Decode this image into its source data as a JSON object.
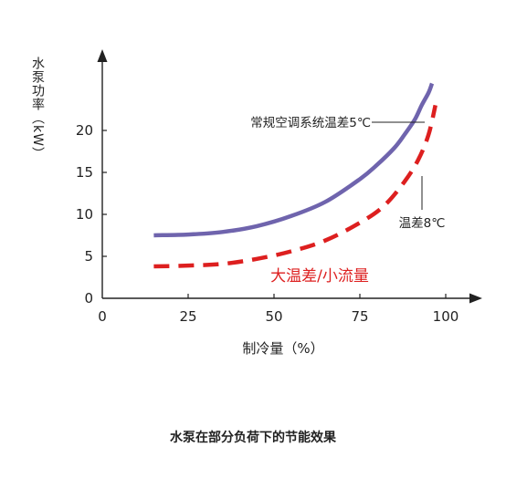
{
  "chart_data": {
    "type": "line",
    "title": "水泵在部分负荷下的节能效果",
    "xlabel": "制冷量（%）",
    "ylabel": "水泵功率（kW）",
    "xlim": [
      0,
      100
    ],
    "ylim": [
      0,
      25
    ],
    "x_ticks": [
      0,
      25,
      50,
      75,
      100
    ],
    "y_ticks": [
      0,
      5,
      10,
      15,
      20
    ],
    "grid": false,
    "series": [
      {
        "name": "常规空调系统温差5℃",
        "color": "#6f64ad",
        "style": "solid",
        "x": [
          15,
          25,
          35,
          45,
          55,
          65,
          75,
          80,
          85,
          88,
          91,
          93,
          95,
          96
        ],
        "y": [
          7.5,
          7.6,
          7.9,
          8.6,
          9.8,
          11.5,
          14.2,
          15.9,
          17.9,
          19.5,
          21.3,
          23.0,
          24.5,
          25.6
        ]
      },
      {
        "name": "温差8℃",
        "color": "#dd1f1f",
        "style": "dashed",
        "x": [
          15,
          25,
          35,
          45,
          55,
          65,
          75,
          82,
          88,
          92,
          95,
          97
        ],
        "y": [
          3.8,
          3.9,
          4.1,
          4.7,
          5.6,
          6.9,
          9.0,
          11.0,
          13.9,
          16.5,
          19.5,
          23.0
        ]
      }
    ],
    "annotations": {
      "big_delta_label": "大温差/小流量",
      "big_delta_color": "#dd1f1f"
    }
  }
}
